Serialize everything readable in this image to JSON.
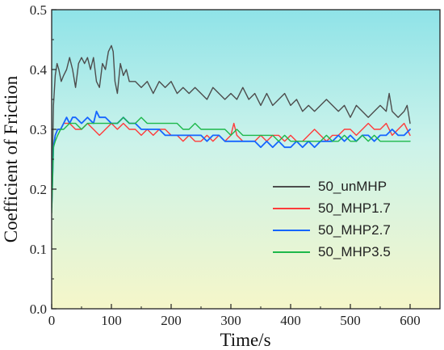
{
  "chart_data": {
    "type": "line",
    "xlabel": "Time/s",
    "ylabel": "Coefficient of Friction",
    "xlim": [
      0,
      650
    ],
    "ylim": [
      0.0,
      0.5
    ],
    "xticks": [
      0,
      100,
      200,
      300,
      400,
      500,
      600
    ],
    "yticks": [
      0.0,
      0.1,
      0.2,
      0.3,
      0.4,
      0.5
    ],
    "xtick_labels": [
      "0",
      "100",
      "200",
      "300",
      "400",
      "500",
      "600"
    ],
    "ytick_labels": [
      "0.0",
      "0.1",
      "0.2",
      "0.3",
      "0.4",
      "0.5"
    ],
    "grid": false,
    "legend_position": "center-right",
    "background": "vertical gradient cyan to pale yellow",
    "series": [
      {
        "name": "50_unMHP",
        "color": "#4d4d4d",
        "points": [
          [
            0,
            0.18
          ],
          [
            3,
            0.34
          ],
          [
            6,
            0.39
          ],
          [
            9,
            0.41
          ],
          [
            12,
            0.4
          ],
          [
            16,
            0.38
          ],
          [
            20,
            0.39
          ],
          [
            25,
            0.4
          ],
          [
            30,
            0.42
          ],
          [
            35,
            0.4
          ],
          [
            40,
            0.37
          ],
          [
            45,
            0.41
          ],
          [
            50,
            0.42
          ],
          [
            55,
            0.41
          ],
          [
            60,
            0.42
          ],
          [
            65,
            0.4
          ],
          [
            70,
            0.42
          ],
          [
            75,
            0.38
          ],
          [
            80,
            0.37
          ],
          [
            85,
            0.41
          ],
          [
            90,
            0.4
          ],
          [
            95,
            0.43
          ],
          [
            100,
            0.44
          ],
          [
            103,
            0.43
          ],
          [
            106,
            0.38
          ],
          [
            110,
            0.36
          ],
          [
            115,
            0.41
          ],
          [
            120,
            0.39
          ],
          [
            125,
            0.4
          ],
          [
            130,
            0.38
          ],
          [
            140,
            0.38
          ],
          [
            150,
            0.37
          ],
          [
            160,
            0.38
          ],
          [
            170,
            0.36
          ],
          [
            180,
            0.38
          ],
          [
            190,
            0.37
          ],
          [
            200,
            0.38
          ],
          [
            210,
            0.36
          ],
          [
            220,
            0.37
          ],
          [
            230,
            0.36
          ],
          [
            240,
            0.37
          ],
          [
            250,
            0.36
          ],
          [
            260,
            0.35
          ],
          [
            270,
            0.37
          ],
          [
            280,
            0.36
          ],
          [
            290,
            0.35
          ],
          [
            300,
            0.36
          ],
          [
            310,
            0.35
          ],
          [
            320,
            0.37
          ],
          [
            330,
            0.35
          ],
          [
            340,
            0.36
          ],
          [
            350,
            0.34
          ],
          [
            360,
            0.36
          ],
          [
            370,
            0.34
          ],
          [
            380,
            0.35
          ],
          [
            390,
            0.36
          ],
          [
            400,
            0.34
          ],
          [
            410,
            0.35
          ],
          [
            420,
            0.33
          ],
          [
            430,
            0.34
          ],
          [
            440,
            0.33
          ],
          [
            450,
            0.34
          ],
          [
            460,
            0.35
          ],
          [
            470,
            0.34
          ],
          [
            480,
            0.33
          ],
          [
            490,
            0.34
          ],
          [
            500,
            0.32
          ],
          [
            510,
            0.34
          ],
          [
            520,
            0.33
          ],
          [
            530,
            0.32
          ],
          [
            540,
            0.33
          ],
          [
            550,
            0.34
          ],
          [
            560,
            0.33
          ],
          [
            565,
            0.36
          ],
          [
            570,
            0.33
          ],
          [
            580,
            0.32
          ],
          [
            590,
            0.33
          ],
          [
            595,
            0.34
          ],
          [
            600,
            0.31
          ]
        ]
      },
      {
        "name": "50_MHP1.7",
        "color": "#ff3b3b",
        "points": [
          [
            0,
            0.18
          ],
          [
            3,
            0.27
          ],
          [
            6,
            0.29
          ],
          [
            10,
            0.3
          ],
          [
            15,
            0.3
          ],
          [
            20,
            0.31
          ],
          [
            30,
            0.31
          ],
          [
            40,
            0.3
          ],
          [
            50,
            0.3
          ],
          [
            60,
            0.31
          ],
          [
            70,
            0.3
          ],
          [
            80,
            0.29
          ],
          [
            90,
            0.3
          ],
          [
            100,
            0.31
          ],
          [
            110,
            0.3
          ],
          [
            120,
            0.31
          ],
          [
            130,
            0.3
          ],
          [
            140,
            0.3
          ],
          [
            150,
            0.29
          ],
          [
            160,
            0.3
          ],
          [
            170,
            0.29
          ],
          [
            180,
            0.3
          ],
          [
            190,
            0.3
          ],
          [
            200,
            0.29
          ],
          [
            210,
            0.29
          ],
          [
            220,
            0.28
          ],
          [
            230,
            0.29
          ],
          [
            240,
            0.28
          ],
          [
            250,
            0.28
          ],
          [
            260,
            0.29
          ],
          [
            270,
            0.28
          ],
          [
            280,
            0.29
          ],
          [
            290,
            0.28
          ],
          [
            300,
            0.29
          ],
          [
            305,
            0.31
          ],
          [
            310,
            0.29
          ],
          [
            320,
            0.28
          ],
          [
            330,
            0.28
          ],
          [
            340,
            0.28
          ],
          [
            350,
            0.29
          ],
          [
            360,
            0.28
          ],
          [
            370,
            0.29
          ],
          [
            380,
            0.29
          ],
          [
            390,
            0.28
          ],
          [
            400,
            0.29
          ],
          [
            410,
            0.28
          ],
          [
            420,
            0.28
          ],
          [
            430,
            0.29
          ],
          [
            440,
            0.3
          ],
          [
            450,
            0.29
          ],
          [
            460,
            0.28
          ],
          [
            470,
            0.29
          ],
          [
            480,
            0.29
          ],
          [
            490,
            0.3
          ],
          [
            500,
            0.3
          ],
          [
            510,
            0.29
          ],
          [
            520,
            0.3
          ],
          [
            530,
            0.31
          ],
          [
            540,
            0.3
          ],
          [
            550,
            0.3
          ],
          [
            560,
            0.31
          ],
          [
            570,
            0.29
          ],
          [
            580,
            0.3
          ],
          [
            590,
            0.31
          ],
          [
            595,
            0.3
          ],
          [
            600,
            0.29
          ]
        ]
      },
      {
        "name": "50_MHP2.7",
        "color": "#1565ff",
        "points": [
          [
            0,
            0.17
          ],
          [
            3,
            0.27
          ],
          [
            6,
            0.29
          ],
          [
            10,
            0.3
          ],
          [
            15,
            0.3
          ],
          [
            20,
            0.31
          ],
          [
            25,
            0.32
          ],
          [
            30,
            0.31
          ],
          [
            35,
            0.32
          ],
          [
            40,
            0.32
          ],
          [
            50,
            0.31
          ],
          [
            60,
            0.32
          ],
          [
            70,
            0.31
          ],
          [
            75,
            0.33
          ],
          [
            80,
            0.32
          ],
          [
            90,
            0.32
          ],
          [
            100,
            0.31
          ],
          [
            110,
            0.31
          ],
          [
            120,
            0.32
          ],
          [
            130,
            0.31
          ],
          [
            140,
            0.31
          ],
          [
            150,
            0.3
          ],
          [
            160,
            0.3
          ],
          [
            170,
            0.3
          ],
          [
            180,
            0.3
          ],
          [
            190,
            0.29
          ],
          [
            200,
            0.29
          ],
          [
            210,
            0.29
          ],
          [
            220,
            0.29
          ],
          [
            230,
            0.29
          ],
          [
            240,
            0.29
          ],
          [
            250,
            0.29
          ],
          [
            260,
            0.28
          ],
          [
            270,
            0.29
          ],
          [
            280,
            0.29
          ],
          [
            290,
            0.28
          ],
          [
            300,
            0.28
          ],
          [
            310,
            0.28
          ],
          [
            320,
            0.28
          ],
          [
            330,
            0.28
          ],
          [
            340,
            0.28
          ],
          [
            350,
            0.27
          ],
          [
            360,
            0.28
          ],
          [
            370,
            0.27
          ],
          [
            380,
            0.28
          ],
          [
            390,
            0.27
          ],
          [
            400,
            0.27
          ],
          [
            410,
            0.28
          ],
          [
            420,
            0.27
          ],
          [
            430,
            0.28
          ],
          [
            440,
            0.27
          ],
          [
            450,
            0.28
          ],
          [
            460,
            0.28
          ],
          [
            470,
            0.28
          ],
          [
            480,
            0.29
          ],
          [
            490,
            0.28
          ],
          [
            500,
            0.29
          ],
          [
            510,
            0.28
          ],
          [
            520,
            0.29
          ],
          [
            530,
            0.29
          ],
          [
            540,
            0.28
          ],
          [
            550,
            0.29
          ],
          [
            560,
            0.29
          ],
          [
            570,
            0.3
          ],
          [
            580,
            0.29
          ],
          [
            590,
            0.29
          ],
          [
            600,
            0.3
          ]
        ]
      },
      {
        "name": "50_MHP3.5",
        "color": "#1db84a",
        "points": [
          [
            0,
            0.16
          ],
          [
            3,
            0.27
          ],
          [
            6,
            0.28
          ],
          [
            10,
            0.29
          ],
          [
            15,
            0.3
          ],
          [
            20,
            0.3
          ],
          [
            30,
            0.31
          ],
          [
            40,
            0.31
          ],
          [
            50,
            0.3
          ],
          [
            60,
            0.31
          ],
          [
            70,
            0.31
          ],
          [
            80,
            0.31
          ],
          [
            90,
            0.31
          ],
          [
            100,
            0.31
          ],
          [
            110,
            0.31
          ],
          [
            120,
            0.32
          ],
          [
            130,
            0.31
          ],
          [
            140,
            0.31
          ],
          [
            150,
            0.32
          ],
          [
            160,
            0.31
          ],
          [
            170,
            0.31
          ],
          [
            180,
            0.31
          ],
          [
            190,
            0.31
          ],
          [
            200,
            0.31
          ],
          [
            210,
            0.31
          ],
          [
            220,
            0.3
          ],
          [
            230,
            0.3
          ],
          [
            240,
            0.31
          ],
          [
            250,
            0.3
          ],
          [
            260,
            0.3
          ],
          [
            270,
            0.3
          ],
          [
            280,
            0.3
          ],
          [
            290,
            0.3
          ],
          [
            300,
            0.29
          ],
          [
            310,
            0.3
          ],
          [
            320,
            0.29
          ],
          [
            330,
            0.29
          ],
          [
            340,
            0.29
          ],
          [
            350,
            0.29
          ],
          [
            360,
            0.29
          ],
          [
            370,
            0.29
          ],
          [
            380,
            0.28
          ],
          [
            390,
            0.29
          ],
          [
            400,
            0.28
          ],
          [
            410,
            0.28
          ],
          [
            420,
            0.28
          ],
          [
            430,
            0.28
          ],
          [
            440,
            0.28
          ],
          [
            450,
            0.28
          ],
          [
            460,
            0.29
          ],
          [
            470,
            0.28
          ],
          [
            480,
            0.28
          ],
          [
            490,
            0.29
          ],
          [
            500,
            0.28
          ],
          [
            510,
            0.28
          ],
          [
            520,
            0.29
          ],
          [
            530,
            0.28
          ],
          [
            540,
            0.29
          ],
          [
            550,
            0.28
          ],
          [
            560,
            0.28
          ],
          [
            570,
            0.28
          ],
          [
            580,
            0.28
          ],
          [
            590,
            0.28
          ],
          [
            600,
            0.28
          ]
        ]
      }
    ]
  }
}
